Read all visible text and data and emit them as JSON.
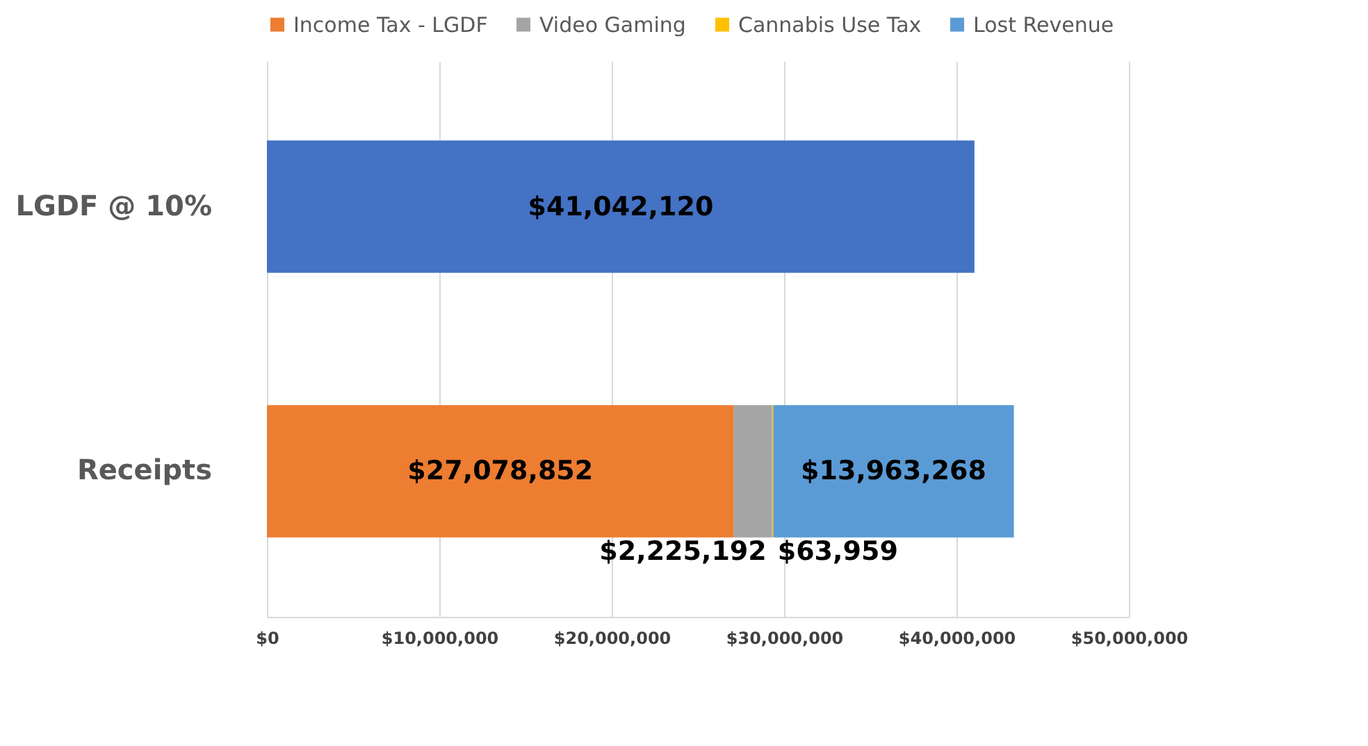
{
  "chart_data": {
    "type": "bar",
    "orientation": "horizontal",
    "stacked": true,
    "categories": [
      "LGDF @ 10%",
      "Receipts"
    ],
    "series": [
      {
        "name": "Income Tax - LGDF",
        "color": "#ed7d31",
        "values": [
          null,
          27078852
        ],
        "value_labels": [
          null,
          "$27,078,852"
        ]
      },
      {
        "name": "Video Gaming",
        "color": "#a5a5a5",
        "values": [
          null,
          2225192
        ],
        "value_labels": [
          null,
          "$2,225,192"
        ]
      },
      {
        "name": "Cannabis Use Tax",
        "color": "#ffc000",
        "values": [
          null,
          63959
        ],
        "value_labels": [
          null,
          "$63,959"
        ]
      },
      {
        "name": "Lost Revenue",
        "color": "#5b9bd5",
        "values": [
          null,
          13963268
        ],
        "value_labels": [
          null,
          "$13,963,268"
        ]
      },
      {
        "color": "#4472c4",
        "values": [
          41042120,
          null
        ],
        "value_labels": [
          "$41,042,120",
          null
        ]
      }
    ],
    "xlim": [
      0,
      50000000
    ],
    "xticks": [
      {
        "value": 0,
        "label": "$0"
      },
      {
        "value": 10000000,
        "label": "$10,000,000"
      },
      {
        "value": 20000000,
        "label": "$20,000,000"
      },
      {
        "value": 30000000,
        "label": "$30,000,000"
      },
      {
        "value": 40000000,
        "label": "$40,000,000"
      },
      {
        "value": 50000000,
        "label": "$50,000,000"
      }
    ],
    "grid": "x",
    "legend": "top"
  }
}
